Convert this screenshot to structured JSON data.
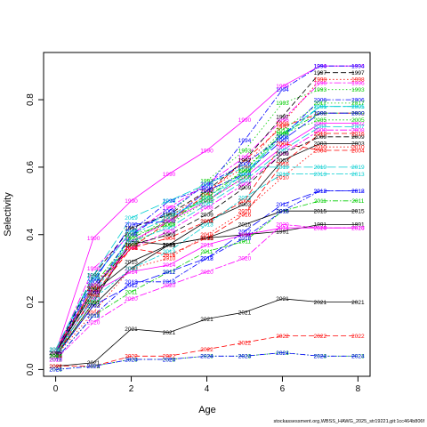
{
  "chart_data": {
    "type": "line",
    "title": "",
    "xlabel": "Age",
    "ylabel": "Selectivity",
    "x": [
      0,
      1,
      2,
      3,
      4,
      5,
      6,
      7,
      8
    ],
    "xlim": [
      -0.32,
      8.32
    ],
    "ylim": [
      -0.02,
      0.94
    ],
    "xticks": [
      0,
      2,
      4,
      6,
      8
    ],
    "yticks": [
      0.0,
      0.2,
      0.4,
      0.6,
      0.8
    ],
    "grid": false,
    "legend": "none",
    "point_labels": "series name written at each age",
    "series": [
      {
        "name": "1990",
        "color": "#FF00FF",
        "dash": "",
        "values": [
          0.05,
          0.39,
          0.5,
          0.58,
          0.65,
          0.74,
          0.84,
          0.9,
          0.9
        ]
      },
      {
        "name": "1991",
        "color": "#000000",
        "dash": "",
        "values": [
          0.04,
          0.2,
          0.38,
          0.37,
          0.39,
          0.4,
          0.41,
          0.43,
          0.43
        ]
      },
      {
        "name": "1992",
        "color": "#FF0000",
        "dash": "6,3",
        "values": [
          0.04,
          0.22,
          0.36,
          0.44,
          0.52,
          0.62,
          0.72,
          0.76,
          0.76
        ]
      },
      {
        "name": "1993",
        "color": "#00CD00",
        "dash": "1.5,2.5",
        "values": [
          0.04,
          0.24,
          0.37,
          0.46,
          0.56,
          0.65,
          0.79,
          0.83,
          0.83
        ]
      },
      {
        "name": "1994",
        "color": "#0000FF",
        "dash": "6,2,1.5,2",
        "values": [
          0.05,
          0.27,
          0.41,
          0.5,
          0.54,
          0.68,
          0.83,
          0.9,
          0.9
        ]
      },
      {
        "name": "1995",
        "color": "#00CED1",
        "dash": "10,3",
        "values": [
          0.06,
          0.27,
          0.41,
          0.46,
          0.5,
          0.58,
          0.7,
          0.78,
          0.78
        ]
      },
      {
        "name": "1996",
        "color": "#FF00FF",
        "dash": "8,2,3,2",
        "values": [
          0.05,
          0.3,
          0.4,
          0.48,
          0.55,
          0.63,
          0.74,
          0.85,
          0.85
        ]
      },
      {
        "name": "1997",
        "color": "#000000",
        "dash": "6,3",
        "values": [
          0.05,
          0.28,
          0.42,
          0.46,
          0.53,
          0.62,
          0.75,
          0.88,
          0.88
        ]
      },
      {
        "name": "1998",
        "color": "#FF0000",
        "dash": "1.5,2.5",
        "values": [
          0.05,
          0.25,
          0.37,
          0.45,
          0.53,
          0.6,
          0.73,
          0.86,
          0.86
        ]
      },
      {
        "name": "1999",
        "color": "#00CD00",
        "dash": "6,2,1.5,2",
        "values": [
          0.05,
          0.25,
          0.39,
          0.44,
          0.51,
          0.59,
          0.7,
          0.76,
          0.76
        ]
      },
      {
        "name": "2000",
        "color": "#0000FF",
        "dash": "10,3",
        "values": [
          0.05,
          0.26,
          0.43,
          0.44,
          0.53,
          0.58,
          0.68,
          0.76,
          0.76
        ]
      },
      {
        "name": "2001",
        "color": "#00CED1",
        "dash": "8,2,3,2",
        "values": [
          0.04,
          0.22,
          0.4,
          0.45,
          0.51,
          0.58,
          0.69,
          0.78,
          0.78
        ]
      },
      {
        "name": "2002",
        "color": "#FF00FF",
        "dash": "",
        "values": [
          0.05,
          0.21,
          0.38,
          0.44,
          0.5,
          0.57,
          0.66,
          0.73,
          0.73
        ]
      },
      {
        "name": "2003",
        "color": "#000000",
        "dash": "",
        "values": [
          0.04,
          0.19,
          0.3,
          0.37,
          0.44,
          0.49,
          0.62,
          0.67,
          0.67
        ]
      },
      {
        "name": "2004",
        "color": "#FF0000",
        "dash": "6,3",
        "values": [
          0.04,
          0.22,
          0.36,
          0.39,
          0.44,
          0.5,
          0.67,
          0.65,
          0.65
        ]
      },
      {
        "name": "2005",
        "color": "#00CD00",
        "dash": "1.5,2.5",
        "values": [
          0.04,
          0.24,
          0.37,
          0.43,
          0.5,
          0.57,
          0.7,
          0.74,
          0.74
        ]
      },
      {
        "name": "2006",
        "color": "#0000FF",
        "dash": "6,2,1.5,2",
        "values": [
          0.05,
          0.23,
          0.4,
          0.47,
          0.55,
          0.61,
          0.69,
          0.8,
          0.8
        ]
      },
      {
        "name": "2007",
        "color": "#00CED1",
        "dash": "10,3",
        "values": [
          0.05,
          0.24,
          0.38,
          0.42,
          0.49,
          0.56,
          0.65,
          0.72,
          0.72
        ]
      },
      {
        "name": "2008",
        "color": "#FF00FF",
        "dash": "8,2,3,2",
        "values": [
          0.05,
          0.25,
          0.36,
          0.41,
          0.48,
          0.55,
          0.64,
          0.71,
          0.71
        ]
      },
      {
        "name": "2009",
        "color": "#000000",
        "dash": "6,3",
        "values": [
          0.05,
          0.24,
          0.37,
          0.4,
          0.46,
          0.54,
          0.64,
          0.69,
          0.69
        ]
      },
      {
        "name": "2010",
        "color": "#FF0000",
        "dash": "1.5,2.5",
        "values": [
          0.04,
          0.17,
          0.3,
          0.33,
          0.4,
          0.47,
          0.57,
          0.66,
          0.66
        ]
      },
      {
        "name": "2011",
        "color": "#00CD00",
        "dash": "6,2,1.5,2",
        "values": [
          0.03,
          0.16,
          0.23,
          0.29,
          0.35,
          0.38,
          0.47,
          0.5,
          0.5
        ]
      },
      {
        "name": "2012",
        "color": "#0000FF",
        "dash": "10,3",
        "values": [
          0.04,
          0.19,
          0.25,
          0.29,
          0.33,
          0.41,
          0.49,
          0.53,
          0.53
        ]
      },
      {
        "name": "2013",
        "color": "#00CED1",
        "dash": "8,2,3,2",
        "values": [
          0.05,
          0.21,
          0.3,
          0.35,
          0.43,
          0.51,
          0.58,
          0.58,
          0.58
        ]
      },
      {
        "name": "2014",
        "color": "#FF00FF",
        "dash": "",
        "values": [
          0.05,
          0.23,
          0.29,
          0.31,
          0.37,
          0.4,
          0.42,
          0.42,
          0.42
        ]
      },
      {
        "name": "2015",
        "color": "#000000",
        "dash": "",
        "values": [
          0.05,
          0.23,
          0.32,
          0.37,
          0.39,
          0.43,
          0.47,
          0.47,
          0.47
        ]
      },
      {
        "name": "2016",
        "color": "#FF0000",
        "dash": "6,3",
        "values": [
          0.06,
          0.24,
          0.36,
          0.34,
          0.39,
          0.46,
          0.61,
          0.7,
          0.7
        ]
      },
      {
        "name": "2017",
        "color": "#00CD00",
        "dash": "1.5,2.5",
        "values": [
          0.04,
          0.2,
          0.4,
          0.43,
          0.52,
          0.59,
          0.71,
          0.79,
          0.79
        ]
      },
      {
        "name": "2018",
        "color": "#0000FF",
        "dash": "6,2,1.5,2",
        "values": [
          0.03,
          0.16,
          0.26,
          0.26,
          0.33,
          0.39,
          0.47,
          0.53,
          0.53
        ]
      },
      {
        "name": "2019",
        "color": "#00CED1",
        "dash": "10,3",
        "values": [
          0.06,
          0.28,
          0.45,
          0.5,
          0.55,
          0.6,
          0.6,
          0.6,
          0.6
        ]
      },
      {
        "name": "2020",
        "color": "#FF00FF",
        "dash": "8,2,3,2",
        "values": [
          0.03,
          0.14,
          0.21,
          0.25,
          0.29,
          0.33,
          0.43,
          0.42,
          0.42
        ]
      },
      {
        "name": "2021",
        "color": "#000000",
        "dash": "",
        "values": [
          0.01,
          0.02,
          0.12,
          0.11,
          0.15,
          0.17,
          0.21,
          0.2,
          0.2
        ]
      },
      {
        "name": "2022",
        "color": "#FF0000",
        "dash": "6,3",
        "values": [
          0.01,
          0.01,
          0.04,
          0.04,
          0.06,
          0.08,
          0.1,
          0.1,
          0.1
        ]
      },
      {
        "name": "2023",
        "color": "#00CD00",
        "dash": "1.5,2.5",
        "values": [
          0.0,
          0.01,
          0.03,
          0.03,
          0.04,
          0.04,
          0.05,
          0.04,
          0.04
        ]
      },
      {
        "name": "2024",
        "color": "#0000FF",
        "dash": "6,2,1.5,2",
        "values": [
          0.0,
          0.01,
          0.03,
          0.03,
          0.04,
          0.04,
          0.05,
          0.04,
          0.04
        ]
      }
    ]
  },
  "footer": "stockassessment.org,WBSS_HAWG_2025_str19221,git:1cc464b806f"
}
